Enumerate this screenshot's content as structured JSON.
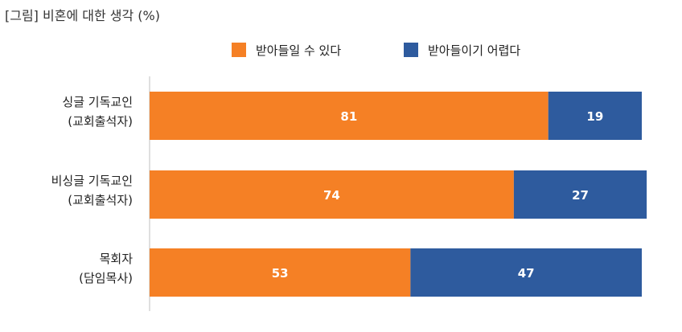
{
  "chart_data": {
    "type": "bar",
    "orientation": "horizontal",
    "stacked": true,
    "title": "[그림] 비혼에 대한 생각 (%)",
    "categories": [
      [
        "싱글 기독교인",
        "(교회출석자)"
      ],
      [
        "비싱글 기독교인",
        "(교회출석자)"
      ],
      [
        "목회자",
        "(담임목사)"
      ]
    ],
    "series": [
      {
        "name": "받아들일 수 있다",
        "color": "#F58025",
        "values": [
          81,
          74,
          53
        ]
      },
      {
        "name": "받아들이기 어렵다",
        "color": "#2E5B9E",
        "values": [
          19,
          27,
          47
        ]
      }
    ],
    "xlim": [
      0,
      100
    ],
    "legend_position": "top",
    "grid": false
  }
}
